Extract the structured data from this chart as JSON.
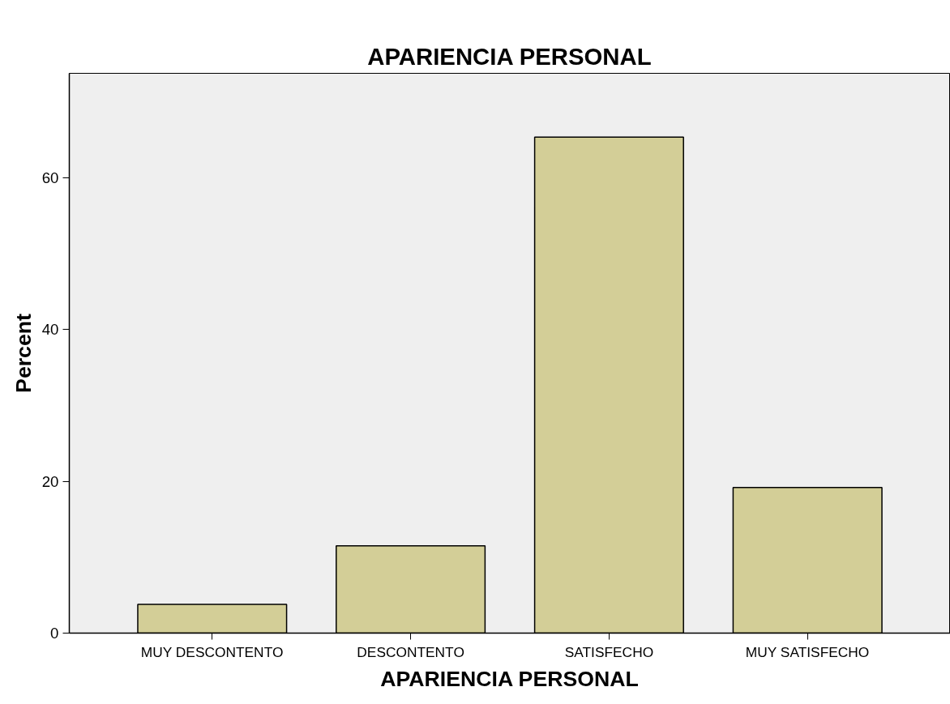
{
  "chart_data": {
    "type": "bar",
    "title": "APARIENCIA PERSONAL",
    "xlabel": "APARIENCIA PERSONAL",
    "ylabel": "Percent",
    "categories": [
      "MUY DESCONTENTO",
      "DESCONTENTO",
      "SATISFECHO",
      "MUY SATISFECHO"
    ],
    "values": [
      3.8,
      11.5,
      65.4,
      19.2
    ],
    "color": "#d3ce97",
    "ylim": [
      0,
      73.8
    ],
    "yticks": [
      0,
      20,
      40,
      60
    ],
    "grid": false
  }
}
